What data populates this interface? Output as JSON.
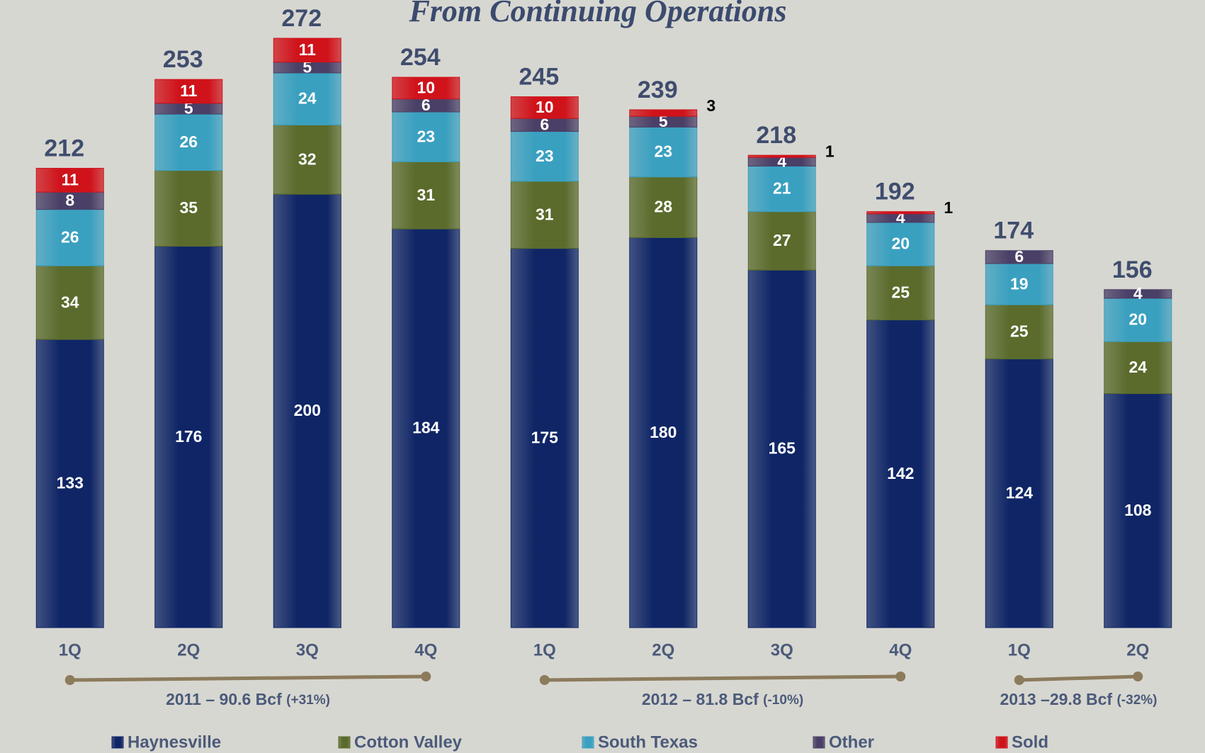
{
  "chart_data": {
    "type": "stacked_bar",
    "title": "From Continuing Operations",
    "categories": [
      "1Q",
      "2Q",
      "3Q",
      "4Q",
      "1Q",
      "2Q",
      "3Q",
      "4Q",
      "1Q",
      "2Q"
    ],
    "series": [
      {
        "name": "Haynesville",
        "color": "#0f2566",
        "values": [
          133,
          176,
          200,
          184,
          175,
          180,
          165,
          142,
          124,
          108
        ]
      },
      {
        "name": "Cotton Valley",
        "color": "#5a6b2c",
        "values": [
          34,
          35,
          32,
          31,
          31,
          28,
          27,
          25,
          25,
          24
        ]
      },
      {
        "name": "South Texas",
        "color": "#3aa0c0",
        "values": [
          26,
          26,
          24,
          23,
          23,
          23,
          21,
          20,
          19,
          20
        ]
      },
      {
        "name": "Other",
        "color": "#4a3f66",
        "values": [
          8,
          5,
          5,
          6,
          6,
          5,
          4,
          4,
          6,
          4
        ]
      },
      {
        "name": "Sold",
        "color": "#d0121a",
        "values": [
          11,
          11,
          11,
          10,
          10,
          3,
          1,
          1,
          null,
          null
        ]
      }
    ],
    "totals": [
      212,
      253,
      272,
      254,
      245,
      239,
      218,
      192,
      174,
      156
    ],
    "annotations": [
      {
        "text": "2011 – 90.6 Bcf",
        "note": "(+31%)"
      },
      {
        "text": "2012 – 81.8 Bcf",
        "note": "(-10%)"
      },
      {
        "text": "2013 –29.8 Bcf",
        "note": "(-32%)"
      }
    ],
    "legend": true
  }
}
